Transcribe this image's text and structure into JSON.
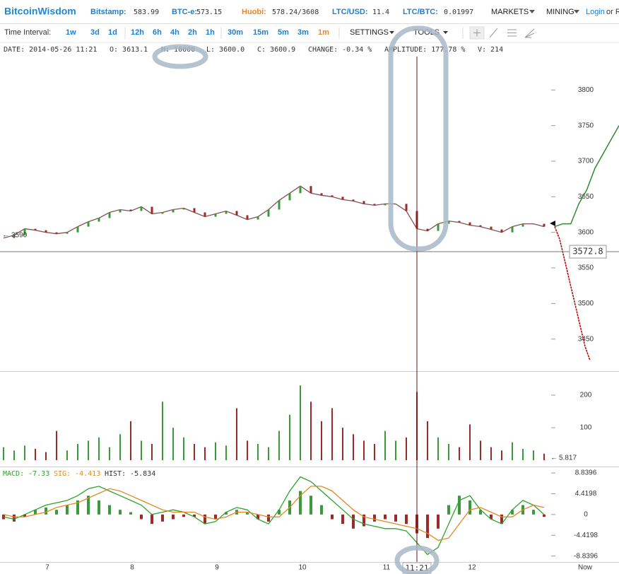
{
  "header": {
    "brand": "BitcoinWisdom",
    "tickers": [
      {
        "label": "Bitstamp:",
        "value": "583.99"
      },
      {
        "label": "BTC-e:",
        "value": "573.15"
      },
      {
        "label": "Huobi:",
        "value": "578.24/3608"
      },
      {
        "label": "LTC/USD:",
        "value": "11.4"
      },
      {
        "label": "LTC/BTC:",
        "value": "0.01997"
      }
    ],
    "menus": [
      "MARKETS",
      "MINING"
    ],
    "login": "Login",
    "or": "or R"
  },
  "toolbar": {
    "label": "Time Interval:",
    "intervals": [
      "1w",
      "3d",
      "1d",
      "12h",
      "6h",
      "4h",
      "2h",
      "1h",
      "30m",
      "15m",
      "5m",
      "3m",
      "1m"
    ],
    "active_index": 12,
    "settings": "SETTINGS",
    "tools": "TOOLS"
  },
  "info": [
    "DATE: 2014-05-26 11:21",
    "O: 3613.1",
    "H: 10000",
    "L: 3600.0",
    "C: 3600.9",
    "CHANGE: -0.34 %",
    "AMPLITUDE: 177.78 %",
    "V: 214"
  ],
  "price_chart": {
    "ylim": [
      3405,
      3847
    ],
    "yticks": [
      3450,
      3500,
      3550,
      3600,
      3650,
      3700,
      3750,
      3800
    ],
    "close": [
      3592,
      3596,
      3605,
      3603,
      3600,
      3598,
      3600,
      3608,
      3615,
      3620,
      3628,
      3632,
      3630,
      3636,
      3626,
      3628,
      3632,
      3634,
      3628,
      3622,
      3626,
      3630,
      3624,
      3618,
      3622,
      3632,
      3645,
      3655,
      3665,
      3655,
      3652,
      3650,
      3646,
      3644,
      3640,
      3638,
      3640,
      3640,
      3630,
      3605,
      3602,
      3612,
      3616,
      3614,
      3610,
      3608,
      3604,
      3600,
      3608,
      3612,
      3612,
      3608
    ],
    "asks": [
      3608,
      3612,
      3612,
      3640,
      3660,
      3690,
      3710,
      3730,
      3750
    ],
    "bids": [
      3608,
      3590,
      3560,
      3530,
      3500,
      3470,
      3440,
      3420
    ],
    "left_label": "3590",
    "cursor_price": 3572.8
  },
  "volume_chart": {
    "ylim": [
      0,
      274
    ],
    "yticks": [
      100,
      200
    ],
    "values": [
      40,
      30,
      45,
      35,
      25,
      90,
      30,
      50,
      60,
      70,
      40,
      80,
      120,
      60,
      50,
      180,
      100,
      70,
      50,
      40,
      55,
      45,
      160,
      60,
      50,
      40,
      90,
      140,
      230,
      180,
      120,
      160,
      100,
      80,
      60,
      50,
      90,
      60,
      70,
      210,
      120,
      70,
      50,
      40,
      110,
      60,
      40,
      30,
      55,
      35,
      30,
      20
    ],
    "last_label": "5.817"
  },
  "macd_chart": {
    "ylim": [
      -10.1,
      10.2
    ],
    "yticks": [
      -8.8396,
      -4.4198,
      0,
      4.4198,
      8.8396
    ],
    "labels": [
      "MACD: -7.33",
      "SIG: -4.413",
      "HIST: -5.834"
    ],
    "hist": [
      -1,
      -1.5,
      -0.5,
      1,
      1.5,
      1,
      2,
      3,
      4,
      3,
      2,
      1,
      0.5,
      -1,
      -2,
      -1.5,
      -1,
      -0.5,
      -0.5,
      -2,
      -1,
      0.5,
      1,
      0.5,
      -1,
      -1.5,
      1,
      3,
      5,
      4,
      2,
      -1,
      -2,
      -3,
      -2.5,
      -1.5,
      -1,
      -1.5,
      -2,
      -4,
      -5,
      -3,
      2,
      4,
      3,
      1,
      -1,
      -2,
      1,
      2,
      1,
      -0.5
    ],
    "macd": [
      -0.5,
      -1,
      0,
      1,
      2,
      2.5,
      3,
      4,
      5.5,
      6,
      5,
      4,
      3,
      2,
      0,
      0.5,
      1,
      0.5,
      -0.5,
      -2,
      -1.5,
      0.5,
      1.5,
      1,
      -1,
      -2,
      1,
      5,
      8,
      7,
      5,
      3,
      1,
      -1,
      -2,
      -2.5,
      -3,
      -3,
      -3.5,
      -6,
      -8.5,
      -7,
      -2,
      3,
      4,
      1,
      -1,
      -2,
      1,
      3,
      2,
      0
    ],
    "signal": [
      0,
      -0.5,
      -0.5,
      0,
      0.5,
      1.5,
      2,
      2.5,
      3.5,
      4.5,
      5.5,
      5,
      4,
      3,
      2,
      1,
      0.5,
      0.5,
      0.5,
      -0.5,
      -1,
      -0.5,
      0.5,
      0.5,
      0,
      -0.5,
      -0.5,
      1.5,
      4,
      6,
      6,
      5,
      3,
      1,
      -0.5,
      -1,
      -1.5,
      -2,
      -2.5,
      -3,
      -4,
      -5.5,
      -5,
      -2,
      1,
      1.5,
      0.5,
      -0.5,
      -0.5,
      1,
      2,
      1.5
    ]
  },
  "x_axis": {
    "labels": [
      "7",
      "8",
      "9",
      "10",
      "11",
      "12",
      "Now"
    ],
    "cursor": "11:21"
  }
}
